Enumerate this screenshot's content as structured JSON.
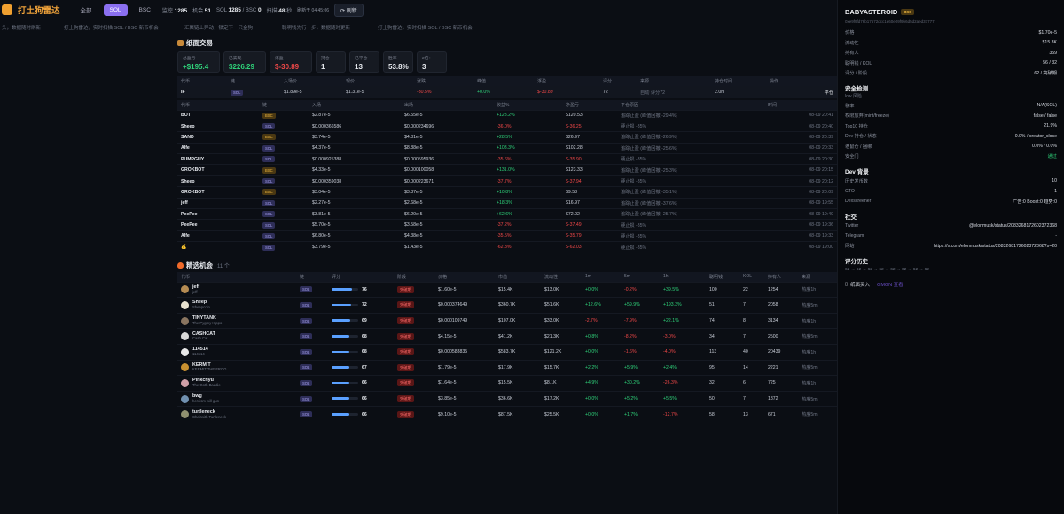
{
  "header": {
    "app_title": "打土狗雷达",
    "tabs": [
      "全部",
      "SOL",
      "BSC"
    ],
    "active_tab": 1,
    "stats": [
      {
        "label": "监控",
        "value": "1285"
      },
      {
        "label": "机会",
        "value": "51"
      },
      {
        "label": "SOL",
        "value": "1285",
        "extra_label": "/ BSC",
        "extra_value": "0"
      },
      {
        "label": "扫描",
        "value": "48",
        "suffix": "秒"
      }
    ],
    "updated": "刷新于 04:45:06",
    "refresh_label": "刷新"
  },
  "infobar": [
    "头，数据随时刷新",
    "打土狗雷达，实时扫描 SOL / BSC 新币机会",
    "汇聚链上异动，锁定下一只金狗",
    "聪明钱先行一步，数据随时更新",
    "打土狗雷达，实时扫描 SOL / BSC 新币机会"
  ],
  "paper": {
    "title": "纸面交易",
    "cards": [
      {
        "label": "总盈亏",
        "value": "+$195.4",
        "tone": "pos"
      },
      {
        "label": "已实现",
        "value": "$226.29",
        "tone": "pos"
      },
      {
        "label": "浮盈",
        "value": "$-30.89",
        "tone": "neg"
      },
      {
        "label": "持仓",
        "value": "1",
        "tone": ""
      },
      {
        "label": "已平仓",
        "value": "13",
        "tone": ""
      },
      {
        "label": "胜率",
        "value": "53.8%",
        "tone": ""
      },
      {
        "label": "2倍+",
        "value": "3",
        "tone": ""
      }
    ],
    "pos_headers": [
      "代币",
      "链",
      "入场价",
      "现价",
      "涨跌",
      "峰值",
      "浮盈",
      "评分",
      "来源",
      "持仓时间",
      "操作"
    ],
    "pos_rows": [
      {
        "sym": "IF",
        "chain": "SOL",
        "entry": "$1.89e-5",
        "now": "$1.31e-5",
        "chg": "-30.5%",
        "peak": "+0.0%",
        "pnl": "$-30.89",
        "score": "72",
        "src": "自动 评分72",
        "hold": "2.0h",
        "op": "平仓"
      }
    ],
    "hist_headers": [
      "代币",
      "链",
      "入场",
      "出场",
      "收益%",
      "净盈亏",
      "平仓原因",
      "时间"
    ],
    "hist_rows": [
      {
        "sym": "BOT",
        "chain": "BSC",
        "entry": "$2.87e-5",
        "exit": "$6.55e-5",
        "ret": "+128.2%",
        "pnl": "$120.53",
        "reason": "追踪止盈 (峰值回撤 -29.4%)",
        "time": "08-09 20:41"
      },
      {
        "sym": "Sheep",
        "chain": "SOL",
        "entry": "$0.000366586",
        "exit": "$0.000234696",
        "ret": "-36.0%",
        "pnl": "$-36.25",
        "reason": "硬止损 -35%",
        "time": "08-09 20:40"
      },
      {
        "sym": "SAND",
        "chain": "BSC",
        "entry": "$3.74e-5",
        "exit": "$4.81e-5",
        "ret": "+28.5%",
        "pnl": "$26.97",
        "reason": "追踪止盈 (峰值回撤 -26.9%)",
        "time": "08-09 20:39"
      },
      {
        "sym": "Alfe",
        "chain": "SOL",
        "entry": "$4.37e-5",
        "exit": "$8.88e-5",
        "ret": "+103.3%",
        "pnl": "$102.28",
        "reason": "追踪止盈 (峰值回撤 -25.6%)",
        "time": "08-09 20:33"
      },
      {
        "sym": "PUMPGUY",
        "chain": "SOL",
        "entry": "$0.000925388",
        "exit": "$0.000595936",
        "ret": "-35.6%",
        "pnl": "$-35.90",
        "reason": "硬止损 -35%",
        "time": "08-09 20:30"
      },
      {
        "sym": "GROKBOT",
        "chain": "BSC",
        "entry": "$4.33e-5",
        "exit": "$0.000100058",
        "ret": "+131.0%",
        "pnl": "$123.33",
        "reason": "追踪止盈 (峰值回撤 -25.3%)",
        "time": "08-09 20:15"
      },
      {
        "sym": "Sheep",
        "chain": "SOL",
        "entry": "$0.000359038",
        "exit": "$0.000223671",
        "ret": "-37.7%",
        "pnl": "$-37.94",
        "reason": "硬止损 -35%",
        "time": "08-09 20:12"
      },
      {
        "sym": "GROKBOT",
        "chain": "BSC",
        "entry": "$3.04e-5",
        "exit": "$3.37e-5",
        "ret": "+10.8%",
        "pnl": "$9.58",
        "reason": "追踪止盈 (峰值回撤 -35.1%)",
        "time": "08-09 20:09"
      },
      {
        "sym": "jeff",
        "chain": "SOL",
        "entry": "$2.27e-5",
        "exit": "$2.68e-5",
        "ret": "+18.3%",
        "pnl": "$16.97",
        "reason": "追踪止盈 (峰值回撤 -37.6%)",
        "time": "08-09 19:55"
      },
      {
        "sym": "PeePee",
        "chain": "SOL",
        "entry": "$3.81e-5",
        "exit": "$6.20e-5",
        "ret": "+62.6%",
        "pnl": "$72.02",
        "reason": "追踪止盈 (峰值回撤 -25.7%)",
        "time": "08-09 19:49"
      },
      {
        "sym": "PeePee",
        "chain": "SOL",
        "entry": "$5.70e-5",
        "exit": "$3.58e-5",
        "ret": "-37.2%",
        "pnl": "$-37.49",
        "reason": "硬止损 -35%",
        "time": "08-09 19:36"
      },
      {
        "sym": "Alfe",
        "chain": "SOL",
        "entry": "$6.80e-5",
        "exit": "$4.38e-5",
        "ret": "-35.5%",
        "pnl": "$-35.79",
        "reason": "硬止损 -35%",
        "time": "08-09 19:33"
      },
      {
        "sym": "💰",
        "chain": "SOL",
        "entry": "$3.79e-5",
        "exit": "$1.43e-5",
        "ret": "-62.3%",
        "pnl": "$-62.03",
        "reason": "硬止损 -35%",
        "time": "08-09 19:00"
      }
    ]
  },
  "opps": {
    "title": "精选机会",
    "count": "11 个",
    "headers": [
      "代币",
      "链",
      "评分",
      "阶段",
      "价格",
      "市值",
      "流动性",
      "1m",
      "5m",
      "1h",
      "聪明钱",
      "KOL",
      "持有人",
      "来源"
    ],
    "rows": [
      {
        "name": "jeff",
        "sub": "jeff",
        "chain": "SOL",
        "score": "76",
        "fill": 0.76,
        "stage": "突破期",
        "price": "$1.60e-5",
        "mcap": "$15.4K",
        "liq": "$13.0K",
        "m1": "+0.0%",
        "m5": "-0.2%",
        "h1": "+39.5%",
        "smart": "100",
        "kol": "22",
        "holders": "1254",
        "src": "热度1h"
      },
      {
        "name": "Sheep",
        "sub": "Sheepcoin",
        "chain": "SOL",
        "score": "72",
        "fill": 0.72,
        "stage": "突破期",
        "price": "$0.000374649",
        "mcap": "$360.7K",
        "liq": "$51.6K",
        "m1": "+12.6%",
        "m5": "+59.9%",
        "h1": "+193.3%",
        "smart": "51",
        "kol": "7",
        "holders": "2058",
        "src": "热度5m"
      },
      {
        "name": "TINYTANK",
        "sub": "The Pygmy Hippo",
        "chain": "SOL",
        "score": "69",
        "fill": 0.69,
        "stage": "突破期",
        "price": "$0.000109749",
        "mcap": "$107.0K",
        "liq": "$33.0K",
        "m1": "-2.7%",
        "m5": "-7.9%",
        "h1": "+22.1%",
        "smart": "74",
        "kol": "8",
        "holders": "3134",
        "src": "热度1h"
      },
      {
        "name": "CASHCAT",
        "sub": "Cash Cat",
        "chain": "SOL",
        "score": "68",
        "fill": 0.68,
        "stage": "突破期",
        "price": "$4.15e-5",
        "mcap": "$41.2K",
        "liq": "$21.3K",
        "m1": "+0.8%",
        "m5": "-8.2%",
        "h1": "-3.0%",
        "smart": "34",
        "kol": "7",
        "holders": "2500",
        "src": "热度5m"
      },
      {
        "name": "114514",
        "sub": "114514",
        "chain": "SOL",
        "score": "68",
        "fill": 0.68,
        "stage": "突破期",
        "price": "$0.000583835",
        "mcap": "$583.7K",
        "liq": "$121.2K",
        "m1": "+0.0%",
        "m5": "-1.6%",
        "h1": "-4.0%",
        "smart": "113",
        "kol": "40",
        "holders": "20439",
        "src": "热度1h"
      },
      {
        "name": "KERMIT",
        "sub": "KERMIT THE FROG",
        "chain": "SOL",
        "score": "67",
        "fill": 0.67,
        "stage": "突破期",
        "price": "$1.79e-5",
        "mcap": "$17.9K",
        "liq": "$15.7K",
        "m1": "+2.2%",
        "m5": "+5.9%",
        "h1": "+2.4%",
        "smart": "95",
        "kol": "14",
        "holders": "2221",
        "src": "热度5m"
      },
      {
        "name": "Pinkchyu",
        "sub": "The Goth Baddie",
        "chain": "SOL",
        "score": "66",
        "fill": 0.66,
        "stage": "突破期",
        "price": "$1.64e-5",
        "mcap": "$15.5K",
        "liq": "$8.1K",
        "m1": "+4.9%",
        "m5": "+30.2%",
        "h1": "-26.3%",
        "smart": "32",
        "kol": "6",
        "holders": "725",
        "src": "热度1h"
      },
      {
        "name": "bwg",
        "sub": "heroism will gun",
        "chain": "SOL",
        "score": "66",
        "fill": 0.66,
        "stage": "突破期",
        "price": "$3.85e-5",
        "mcap": "$36.6K",
        "liq": "$17.2K",
        "m1": "+0.0%",
        "m5": "+5.2%",
        "h1": "+5.5%",
        "smart": "50",
        "kol": "7",
        "holders": "1872",
        "src": "热度5m"
      },
      {
        "name": "turtleneck",
        "sub": "Chairwith Turtleneck",
        "chain": "SOL",
        "score": "66",
        "fill": 0.66,
        "stage": "突破期",
        "price": "$9.10e-5",
        "mcap": "$87.5K",
        "liq": "$25.5K",
        "m1": "+0.0%",
        "m5": "+1.7%",
        "h1": "-12.7%",
        "smart": "58",
        "kol": "13",
        "holders": "671",
        "src": "热度5m"
      }
    ]
  },
  "panel": {
    "title": "BABYASTEROID",
    "chain": "BSC",
    "address": "0xe9f9fd76b17572dcc1e60e09f9b6d5d2aed37777",
    "basic": [
      {
        "k": "价格",
        "v": "$1.70e-5"
      },
      {
        "k": "流动性",
        "v": "$15.3K"
      },
      {
        "k": "持有人",
        "v": "359"
      },
      {
        "k": "聪明钱 / KOL",
        "v": "56 / 32"
      },
      {
        "k": "评分 / 阶段",
        "v": "62 / 突破期"
      }
    ],
    "safety_title": "安全检测",
    "safety_sub": "low 风险",
    "safety": [
      {
        "k": "税率",
        "v": "N/A(SOL)"
      },
      {
        "k": "权限放弃(mint/freeze)",
        "v": "false / false"
      },
      {
        "k": "Top10 持仓",
        "v": "21.9%"
      },
      {
        "k": "Dev 持仓 / 状态",
        "v": "0.0% / creator_close"
      },
      {
        "k": "老鼠仓 / 捆绑",
        "v": "0.0% / 0.0%"
      },
      {
        "k": "安全门",
        "v": "通过",
        "tone": "pos"
      }
    ],
    "dev_title": "Dev 背景",
    "dev": [
      {
        "k": "历史发币数",
        "v": "10"
      },
      {
        "k": "CTO",
        "v": "1"
      },
      {
        "k": "Dexscreener",
        "v": "广告:0 Boost:0 趋势:0"
      }
    ],
    "social_title": "社交",
    "social": [
      {
        "k": "Twitter",
        "v": "@elonmusk/status/2083268172602372368"
      },
      {
        "k": "Telegram",
        "v": "-"
      },
      {
        "k": "网站",
        "v": "https://x.com/elonmusk/status/2083268172602372368?s=20"
      }
    ],
    "history_title": "评分历史",
    "history": "62 → 62 → 62 → 62 → 62 → 62 → 62 → 62",
    "buy_label": "纸面买入",
    "link_label": "GMGN 查看"
  }
}
